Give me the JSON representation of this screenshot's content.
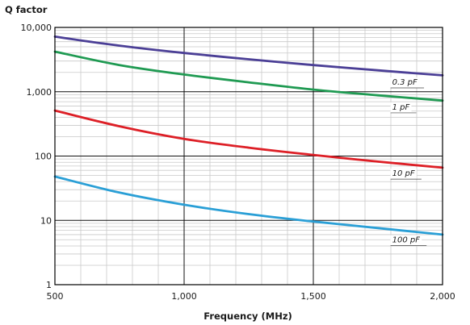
{
  "chart_data": {
    "type": "line",
    "title": "",
    "xlabel": "Frequency (MHz)",
    "ylabel": "Q factor",
    "x_scale": "linear",
    "y_scale": "log",
    "xlim": [
      500,
      2000
    ],
    "ylim": [
      1,
      10000
    ],
    "x_ticks": [
      500,
      1000,
      1500,
      2000
    ],
    "x_tick_labels": [
      "500",
      "1,000",
      "1,500",
      "2,000"
    ],
    "y_ticks": [
      1,
      10,
      100,
      1000,
      10000
    ],
    "y_tick_labels": [
      "1",
      "10",
      "100",
      "1,000",
      "10,000"
    ],
    "x_minor_step": 100,
    "y_minor": "log-decade",
    "grid": true,
    "legend": "inline labels",
    "x": [
      500,
      750,
      1000,
      1250,
      1500,
      1750,
      2000
    ],
    "series": [
      {
        "name": "0.3 pF",
        "color": "#4b3f96",
        "values": [
          7200,
          5200,
          4000,
          3200,
          2600,
          2150,
          1800
        ]
      },
      {
        "name": "1 pF",
        "color": "#1f9a52",
        "values": [
          4200,
          2600,
          1850,
          1400,
          1080,
          880,
          730
        ]
      },
      {
        "name": "10 pF",
        "color": "#dd1f26",
        "values": [
          510,
          290,
          185,
          135,
          104,
          82,
          66
        ]
      },
      {
        "name": "100 pF",
        "color": "#2a9fd6",
        "values": [
          48,
          27,
          17.5,
          12.5,
          9.6,
          7.6,
          6.0
        ]
      }
    ]
  }
}
